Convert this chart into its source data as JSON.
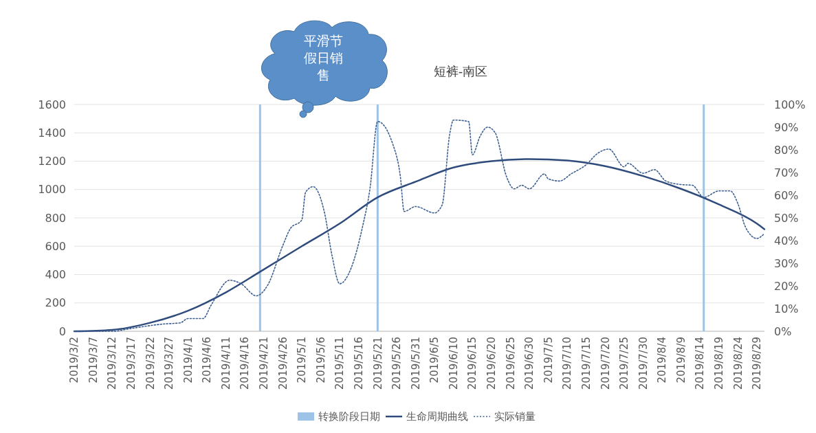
{
  "chart_data": {
    "type": "line",
    "title": "短裤-南区",
    "annotations": [
      "平滑节假日销售"
    ],
    "xlim": [
      "2019-03-02",
      "2019-08-31"
    ],
    "xticks": [
      {
        "value": "2019-03-02",
        "label": "2019/3/2"
      },
      {
        "value": "2019-03-07",
        "label": "2019/3/7"
      },
      {
        "value": "2019-03-12",
        "label": "2019/3/12"
      },
      {
        "value": "2019-03-17",
        "label": "2019/3/17"
      },
      {
        "value": "2019-03-22",
        "label": "2019/3/22"
      },
      {
        "value": "2019-03-27",
        "label": "2019/3/27"
      },
      {
        "value": "2019-04-01",
        "label": "2019/4/1"
      },
      {
        "value": "2019-04-06",
        "label": "2019/4/6"
      },
      {
        "value": "2019-04-11",
        "label": "2019/4/11"
      },
      {
        "value": "2019-04-16",
        "label": "2019/4/16"
      },
      {
        "value": "2019-04-21",
        "label": "2019/4/21"
      },
      {
        "value": "2019-04-26",
        "label": "2019/4/26"
      },
      {
        "value": "2019-05-01",
        "label": "2019/5/1"
      },
      {
        "value": "2019-05-06",
        "label": "2019/5/6"
      },
      {
        "value": "2019-05-11",
        "label": "2019/5/11"
      },
      {
        "value": "2019-05-16",
        "label": "2019/5/16"
      },
      {
        "value": "2019-05-21",
        "label": "2019/5/21"
      },
      {
        "value": "2019-05-26",
        "label": "2019/5/26"
      },
      {
        "value": "2019-05-31",
        "label": "2019/5/31"
      },
      {
        "value": "2019-06-05",
        "label": "2019/6/5"
      },
      {
        "value": "2019-06-10",
        "label": "2019/6/10"
      },
      {
        "value": "2019-06-15",
        "label": "2019/6/15"
      },
      {
        "value": "2019-06-20",
        "label": "2019/6/20"
      },
      {
        "value": "2019-06-25",
        "label": "2019/6/25"
      },
      {
        "value": "2019-06-30",
        "label": "2019/6/30"
      },
      {
        "value": "2019-07-05",
        "label": "2019/7/5"
      },
      {
        "value": "2019-07-10",
        "label": "2019/7/10"
      },
      {
        "value": "2019-07-15",
        "label": "2019/7/15"
      },
      {
        "value": "2019-07-20",
        "label": "2019/7/20"
      },
      {
        "value": "2019-07-25",
        "label": "2019/7/25"
      },
      {
        "value": "2019-07-30",
        "label": "2019/7/30"
      },
      {
        "value": "2019-08-04",
        "label": "2019/8/4"
      },
      {
        "value": "2019-08-09",
        "label": "2019/8/9"
      },
      {
        "value": "2019-08-14",
        "label": "2019/8/14"
      },
      {
        "value": "2019-08-19",
        "label": "2019/8/19"
      },
      {
        "value": "2019-08-24",
        "label": "2019/8/24"
      },
      {
        "value": "2019-08-29",
        "label": "2019/8/29"
      }
    ],
    "ylim": [
      0,
      1600
    ],
    "yticks": [
      0,
      200,
      400,
      600,
      800,
      1000,
      1200,
      1400,
      1600
    ],
    "y2lim": [
      0,
      100
    ],
    "y2ticks": [
      {
        "value": 0,
        "label": "0%"
      },
      {
        "value": 10,
        "label": "10%"
      },
      {
        "value": 20,
        "label": "20%"
      },
      {
        "value": 30,
        "label": "30%"
      },
      {
        "value": 40,
        "label": "40%"
      },
      {
        "value": 50,
        "label": "50%"
      },
      {
        "value": 60,
        "label": "60%"
      },
      {
        "value": 70,
        "label": "70%"
      },
      {
        "value": 80,
        "label": "80%"
      },
      {
        "value": 90,
        "label": "90%"
      },
      {
        "value": 100,
        "label": "100%"
      }
    ],
    "grid": "y",
    "legend": "bottom",
    "marker": "none",
    "series": [
      {
        "name": "转换阶段日期",
        "type": "bar",
        "axis": "y2",
        "color": "#9dc3e6",
        "x": [
          "2019-04-20",
          "2019-05-21",
          "2019-08-15"
        ],
        "values": [
          100,
          100,
          100
        ]
      },
      {
        "name": "生命周期曲线",
        "line_style": "solid",
        "color": "#2f4b7c",
        "x": [
          "2019-03-02",
          "2019-03-12",
          "2019-03-22",
          "2019-04-01",
          "2019-04-11",
          "2019-04-20",
          "2019-05-01",
          "2019-05-11",
          "2019-05-21",
          "2019-05-31",
          "2019-06-10",
          "2019-06-20",
          "2019-06-30",
          "2019-07-10",
          "2019-07-20",
          "2019-07-30",
          "2019-08-09",
          "2019-08-19",
          "2019-08-29",
          "2019-08-31"
        ],
        "values": [
          0,
          10,
          60,
          145,
          275,
          420,
          600,
          760,
          945,
          1055,
          1155,
          1200,
          1215,
          1205,
          1165,
          1095,
          1005,
          895,
          760,
          720
        ]
      },
      {
        "name": "实际销量",
        "line_style": "dotted",
        "color": "#3d5f91",
        "x": [
          "2019-03-02",
          "2019-03-12",
          "2019-03-17",
          "2019-03-25",
          "2019-03-30",
          "2019-04-01",
          "2019-04-05",
          "2019-04-07",
          "2019-04-12",
          "2019-04-15",
          "2019-04-19",
          "2019-04-22",
          "2019-04-26",
          "2019-04-28",
          "2019-05-01",
          "2019-05-02",
          "2019-05-04",
          "2019-05-07",
          "2019-05-09",
          "2019-05-11",
          "2019-05-14",
          "2019-05-17",
          "2019-05-19",
          "2019-05-21",
          "2019-05-25",
          "2019-05-27",
          "2019-05-28",
          "2019-05-31",
          "2019-06-05",
          "2019-06-07",
          "2019-06-09",
          "2019-06-10",
          "2019-06-14",
          "2019-06-15",
          "2019-06-17",
          "2019-06-19",
          "2019-06-21",
          "2019-06-24",
          "2019-06-26",
          "2019-06-28",
          "2019-06-30",
          "2019-07-04",
          "2019-07-05",
          "2019-07-08",
          "2019-07-11",
          "2019-07-15",
          "2019-07-18",
          "2019-07-21",
          "2019-07-25",
          "2019-07-26",
          "2019-07-30",
          "2019-08-02",
          "2019-08-05",
          "2019-08-09",
          "2019-08-12",
          "2019-08-15",
          "2019-08-19",
          "2019-08-22",
          "2019-08-24",
          "2019-08-26",
          "2019-08-29",
          "2019-08-31"
        ],
        "values": [
          0,
          0,
          20,
          50,
          60,
          90,
          90,
          180,
          360,
          335,
          250,
          325,
          605,
          725,
          785,
          980,
          1020,
          835,
          530,
          335,
          445,
          735,
          1010,
          1480,
          1320,
          1090,
          845,
          880,
          835,
          890,
          1390,
          1490,
          1480,
          1245,
          1375,
          1440,
          1400,
          1090,
          1005,
          1030,
          1005,
          1110,
          1075,
          1060,
          1110,
          1175,
          1255,
          1285,
          1160,
          1185,
          1115,
          1140,
          1060,
          1035,
          1030,
          945,
          990,
          990,
          900,
          735,
          655,
          690
        ]
      }
    ]
  }
}
